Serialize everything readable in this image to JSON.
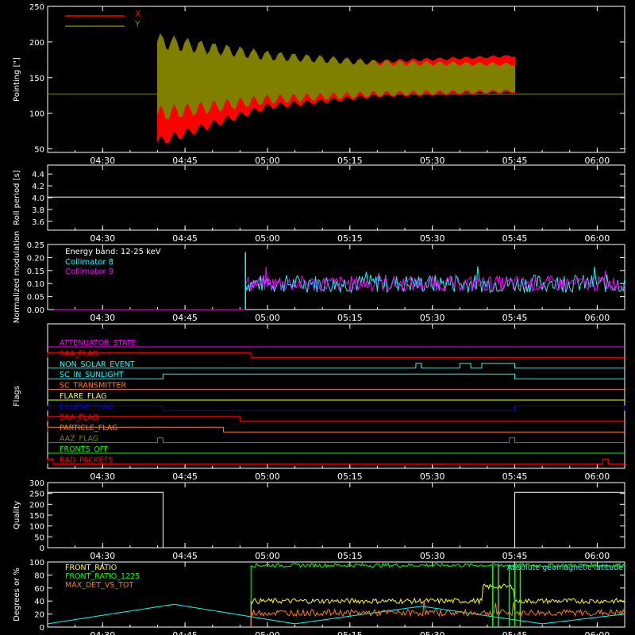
{
  "time_ticks": [
    "04:30",
    "04:45",
    "05:00",
    "05:15",
    "05:30",
    "05:45",
    "06:00"
  ],
  "time_range": [
    "04:20",
    "06:05"
  ],
  "colors": {
    "background": "#000000",
    "axes": "#ffffff",
    "red": "#ff0000",
    "olive": "#808000",
    "cyan": "#00ffff",
    "magenta": "#ff00ff",
    "orange": "#ff7f00",
    "yellow": "#ffff00",
    "green": "#00ff00",
    "blue": "#0000ff",
    "white": "#ffffff"
  },
  "chart_data": [
    {
      "type": "line",
      "ylabel": "Pointing [\"]",
      "ylim": [
        45,
        250
      ],
      "yticks": [
        50,
        100,
        150,
        200,
        250
      ],
      "legend": {
        "placement": "top-left",
        "entries": [
          "X",
          "Y"
        ]
      },
      "series": [
        {
          "name": "X",
          "color": "#ff0000",
          "start": "04:40",
          "end": "05:45",
          "upper_envelope": [
            [
              0,
              150
            ],
            [
              20,
              160
            ],
            [
              40,
              172
            ],
            [
              65,
              180
            ]
          ],
          "lower_envelope": [
            [
              0,
              60
            ],
            [
              20,
              110
            ],
            [
              40,
              125
            ],
            [
              65,
              130
            ]
          ]
        },
        {
          "name": "Y",
          "color": "#808000",
          "start": "04:40",
          "end": "05:45",
          "upper_envelope": [
            [
              0,
              200
            ],
            [
              20,
              180
            ],
            [
              40,
              170
            ],
            [
              65,
              168
            ]
          ],
          "lower_envelope": [
            [
              0,
              100
            ],
            [
              20,
              120
            ],
            [
              40,
              128
            ],
            [
              65,
              132
            ]
          ]
        }
      ],
      "reference_line": 127
    },
    {
      "type": "line",
      "ylabel": "Roll period [s]",
      "ylim": [
        3.45,
        4.55
      ],
      "yticks": [
        3.6,
        3.8,
        4.0,
        4.2,
        4.4
      ],
      "series": [
        {
          "color": "#ffffff",
          "value": 4.01
        }
      ]
    },
    {
      "type": "line",
      "ylabel": "Normalized modulation",
      "ylim": [
        0,
        0.25
      ],
      "yticks": [
        0.0,
        0.05,
        0.1,
        0.15,
        0.2,
        0.25
      ],
      "annotation": "Energy band: 12-25 keV",
      "legend": {
        "placement": "top-left",
        "entries": [
          "Collimator 8",
          "Collimator 9"
        ]
      },
      "series": [
        {
          "name": "Collimator 8",
          "color": "#00ffff",
          "zero_until": "04:56",
          "mean": 0.1,
          "spread": 0.035
        },
        {
          "name": "Collimator 9",
          "color": "#ff00ff",
          "zero_until": "04:56",
          "mean": 0.1,
          "spread": 0.03
        }
      ]
    },
    {
      "type": "line",
      "ylabel": "Flags",
      "flags": [
        {
          "name": "ATTENUATOR_STATE",
          "color": "#ff00ff",
          "high_intervals": []
        },
        {
          "name": "SAA_FLAG",
          "color": "#ff0000",
          "high_intervals": [
            [
              "04:20",
              "04:57"
            ]
          ]
        },
        {
          "name": "NON_SOLAR_EVENT",
          "color": "#00ffff",
          "high_intervals": [
            [
              "05:27",
              "05:28"
            ],
            [
              "05:35",
              "05:37"
            ],
            [
              "05:39",
              "05:45"
            ]
          ]
        },
        {
          "name": "SC_IN_SUNLIGHT",
          "color": "#00ffff",
          "high_intervals": [
            [
              "04:41",
              "05:45"
            ]
          ]
        },
        {
          "name": "SC_TRANSMITTER",
          "color": "#ff7f00",
          "high_intervals": []
        },
        {
          "name": "FLARE_FLAG",
          "color": "#ffff00",
          "high_intervals": []
        },
        {
          "name": "ECLIPSE_FLAG",
          "color": "#0000ff",
          "high_intervals": [
            [
              "04:20",
              "04:41"
            ],
            [
              "05:45",
              "06:05"
            ]
          ]
        },
        {
          "name": "SAA_FLAG",
          "color": "#ff0000",
          "high_intervals": [
            [
              "04:20",
              "04:55"
            ]
          ]
        },
        {
          "name": "PARTICLE_FLAG",
          "color": "#ff7f00",
          "high_intervals": [
            [
              "04:20",
              "04:52"
            ]
          ]
        },
        {
          "name": "AAZ_FLAG",
          "color": "#808000",
          "high_intervals": [
            [
              "04:40",
              "04:41"
            ],
            [
              "05:44",
              "05:45"
            ]
          ]
        },
        {
          "name": "FRONTS_OFF",
          "color": "#00ff00",
          "high_intervals": []
        },
        {
          "name": "BAD_PACKETS",
          "color": "#ff0000",
          "high_intervals": [
            [
              "04:20",
              "04:21"
            ],
            [
              "06:01",
              "06:02"
            ]
          ]
        }
      ]
    },
    {
      "type": "line",
      "ylabel": "Quality",
      "ylim": [
        0,
        300
      ],
      "yticks": [
        0,
        50,
        100,
        150,
        200,
        250,
        300
      ],
      "series": [
        {
          "color": "#ffffff",
          "steps": [
            [
              "04:20",
              255
            ],
            [
              "04:41",
              0
            ],
            [
              "05:45",
              255
            ],
            [
              "06:05",
              255
            ]
          ]
        }
      ]
    },
    {
      "type": "line",
      "ylabel": "Degrees or %",
      "ylim": [
        0,
        100
      ],
      "yticks": [
        0,
        20,
        40,
        60,
        80,
        100
      ],
      "legend": {
        "placement": "top-left",
        "entries": [
          "FRONT_RATIO",
          "FRONT_RATIO_1225",
          "MAX_DET_VS_TOT"
        ]
      },
      "annotation_right": "Absolute geomagnetic latitude",
      "series": [
        {
          "name": "FRONT_RATIO",
          "color": "#ffff00",
          "start": "04:57",
          "mean": 40
        },
        {
          "name": "FRONT_RATIO_1225",
          "color": "#00ff00",
          "start": "04:57",
          "mean": 95
        },
        {
          "name": "MAX_DET_VS_TOT",
          "color": "#ff7f00",
          "start": "04:57",
          "mean": 22
        },
        {
          "name": "Absolute geomagnetic latitude",
          "color": "#00ffff",
          "points": [
            [
              "04:20",
              5
            ],
            [
              "04:43",
              35
            ],
            [
              "05:05",
              5
            ],
            [
              "05:28",
              32
            ],
            [
              "05:50",
              5
            ],
            [
              "06:05",
              20
            ]
          ]
        }
      ]
    }
  ]
}
